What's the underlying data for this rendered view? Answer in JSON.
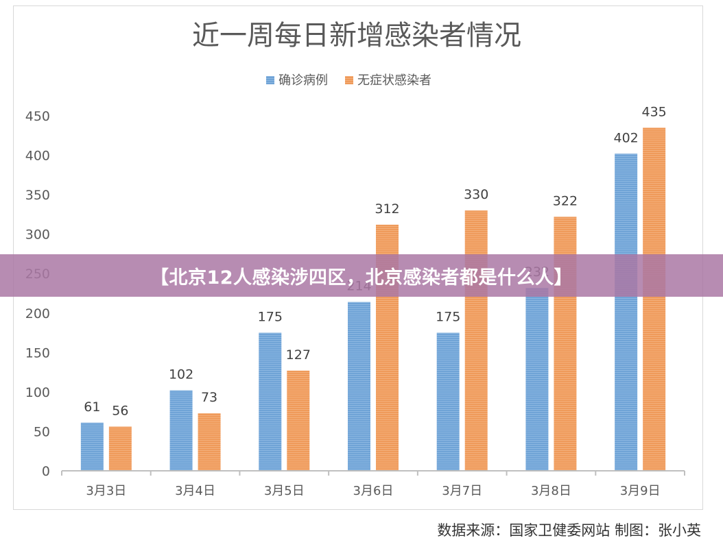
{
  "banner": {
    "text": "【北京12人感染涉四区，北京感染者都是什么人】"
  },
  "source": {
    "text": "数据来源：国家卫健委网站  制图：张小英"
  },
  "colors": {
    "confirmed": "#6fa3d6",
    "asymptomatic": "#ef9a5a",
    "banner": "#aa78a5",
    "text": "#595959"
  },
  "chart_data": {
    "type": "bar",
    "title": "近一周每日新增感染者情况",
    "legend_position": "top-center",
    "grid": false,
    "categories": [
      "3月3日",
      "3月4日",
      "3月5日",
      "3月6日",
      "3月7日",
      "3月8日",
      "3月9日"
    ],
    "series": [
      {
        "name": "确诊病例",
        "values": [
          61,
          102,
          175,
          214,
          175,
          232,
          402
        ]
      },
      {
        "name": "无症状感染者",
        "values": [
          56,
          73,
          127,
          312,
          330,
          322,
          435
        ]
      }
    ],
    "data_labels": [
      [
        "61",
        "102",
        "175",
        "214",
        "175",
        "232",
        "402"
      ],
      [
        "56",
        "73",
        "127",
        "312",
        "330",
        "322",
        "435"
      ]
    ],
    "yticks": [
      "0",
      "50",
      "100",
      "150",
      "200",
      "250",
      "300",
      "350",
      "400",
      "450"
    ],
    "ylim": [
      0,
      450
    ]
  }
}
